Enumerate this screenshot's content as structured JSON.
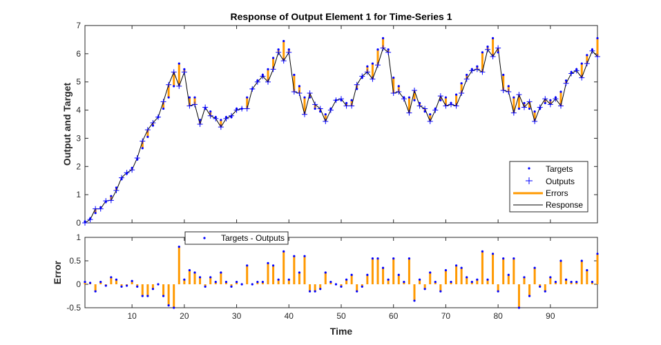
{
  "chart_data": [
    {
      "type": "line",
      "title": "Response of Output Element 1 for Time-Series 1",
      "xlabel": "",
      "ylabel": "Output and Target",
      "xlim": [
        1,
        99
      ],
      "ylim": [
        0,
        7
      ],
      "y_ticks": [
        0,
        1,
        2,
        3,
        4,
        5,
        6,
        7
      ],
      "grid": false,
      "legend_position": "bottom-right",
      "legend": [
        "Targets",
        "Outputs",
        "Errors",
        "Response"
      ],
      "colors": {
        "targets": "#0000ff",
        "outputs": "#0000ff",
        "errors": "#ff9900",
        "response": "#000000"
      },
      "x": [
        1,
        2,
        3,
        4,
        5,
        6,
        7,
        8,
        9,
        10,
        11,
        12,
        13,
        14,
        15,
        16,
        17,
        18,
        19,
        20,
        21,
        22,
        23,
        24,
        25,
        26,
        27,
        28,
        29,
        30,
        31,
        32,
        33,
        34,
        35,
        36,
        37,
        38,
        39,
        40,
        41,
        42,
        43,
        44,
        45,
        46,
        47,
        48,
        49,
        50,
        51,
        52,
        53,
        54,
        55,
        56,
        57,
        58,
        59,
        60,
        61,
        62,
        63,
        64,
        65,
        66,
        67,
        68,
        69,
        70,
        71,
        72,
        73,
        74,
        75,
        76,
        77,
        78,
        79,
        80,
        81,
        82,
        83,
        84,
        85,
        86,
        87,
        88,
        89,
        90,
        91,
        92,
        93,
        94,
        95,
        96,
        97,
        98,
        99
      ],
      "series": [
        {
          "name": "Targets",
          "values": [
            0.05,
            0.15,
            0.35,
            0.55,
            0.75,
            0.95,
            1.25,
            1.55,
            1.75,
            1.95,
            2.25,
            2.65,
            3.05,
            3.45,
            3.75,
            4.05,
            4.45,
            4.85,
            5.65,
            5.45,
            4.45,
            4.45,
            3.65,
            4.05,
            3.95,
            3.75,
            3.65,
            3.75,
            3.75,
            4.05,
            4.05,
            4.45,
            4.75,
            5.05,
            5.25,
            5.45,
            5.85,
            6.15,
            6.45,
            6.15,
            5.25,
            4.85,
            4.45,
            4.45,
            4.05,
            3.95,
            3.85,
            4.05,
            4.35,
            4.35,
            4.25,
            4.35,
            4.75,
            5.15,
            5.55,
            5.65,
            6.15,
            6.55,
            6.15,
            5.15,
            4.85,
            4.45,
            4.45,
            4.35,
            4.25,
            3.95,
            3.85,
            4.05,
            4.35,
            4.45,
            4.25,
            4.55,
            4.95,
            5.25,
            5.45,
            5.55,
            6.05,
            6.25,
            6.55,
            6.05,
            5.25,
            4.85,
            4.45,
            4.05,
            4.25,
            4.05,
            3.95,
            4.05,
            4.25,
            4.35,
            4.45,
            4.65,
            5.05,
            5.35,
            5.45,
            5.65,
            5.95,
            6.15,
            6.55
          ]
        },
        {
          "name": "Outputs",
          "values": [
            0.0,
            0.12,
            0.5,
            0.5,
            0.78,
            0.8,
            1.15,
            1.6,
            1.78,
            1.88,
            2.3,
            2.9,
            3.3,
            3.55,
            3.75,
            4.3,
            4.9,
            5.35,
            4.85,
            5.35,
            4.15,
            4.2,
            3.5,
            4.1,
            3.8,
            3.7,
            3.4,
            3.7,
            3.8,
            4.0,
            4.05,
            4.05,
            4.75,
            5.0,
            5.2,
            5.0,
            5.45,
            6.05,
            5.75,
            6.05,
            4.65,
            4.6,
            3.85,
            4.6,
            4.2,
            4.05,
            3.6,
            4.0,
            4.35,
            4.4,
            4.15,
            4.15,
            4.9,
            5.2,
            5.35,
            5.1,
            5.6,
            6.2,
            6.05,
            4.6,
            4.65,
            4.4,
            3.9,
            4.7,
            4.15,
            4.05,
            3.6,
            4.0,
            4.5,
            4.15,
            4.2,
            4.15,
            4.6,
            5.1,
            5.4,
            5.45,
            5.35,
            6.15,
            5.9,
            6.2,
            4.7,
            4.65,
            3.9,
            4.55,
            4.1,
            4.3,
            3.6,
            4.1,
            4.4,
            4.2,
            4.4,
            4.15,
            4.95,
            5.3,
            5.4,
            5.15,
            5.65,
            6.1,
            5.9
          ]
        }
      ]
    },
    {
      "type": "bar",
      "title": "",
      "xlabel": "Time",
      "ylabel": "Error",
      "xlim": [
        1,
        99
      ],
      "ylim": [
        -0.5,
        1
      ],
      "x_ticks": [
        10,
        20,
        30,
        40,
        50,
        60,
        70,
        80,
        90
      ],
      "y_ticks": [
        -0.5,
        0,
        0.5,
        1
      ],
      "grid": false,
      "legend_position": "top-left",
      "legend": [
        "Targets - Outputs"
      ],
      "colors": {
        "stems": "#ff9900",
        "markers": "#0000ff"
      },
      "series": [
        {
          "name": "Targets - Outputs",
          "values": [
            0.05,
            0.03,
            -0.15,
            0.05,
            -0.03,
            0.15,
            0.1,
            -0.05,
            -0.03,
            0.07,
            -0.05,
            -0.25,
            -0.25,
            -0.1,
            0.0,
            -0.25,
            -0.45,
            -0.5,
            0.8,
            0.1,
            0.3,
            0.25,
            0.15,
            -0.05,
            0.15,
            0.05,
            0.25,
            0.05,
            -0.05,
            0.05,
            0.0,
            0.4,
            0.0,
            0.05,
            0.05,
            0.45,
            0.4,
            0.1,
            0.7,
            0.1,
            0.6,
            0.25,
            0.6,
            -0.15,
            -0.15,
            -0.1,
            0.25,
            0.05,
            0.0,
            -0.05,
            0.1,
            0.2,
            -0.15,
            -0.05,
            0.2,
            0.55,
            0.55,
            0.35,
            0.1,
            0.55,
            0.2,
            0.05,
            0.55,
            -0.35,
            0.1,
            -0.1,
            0.25,
            0.05,
            -0.15,
            0.3,
            0.05,
            0.4,
            0.35,
            0.15,
            0.05,
            0.1,
            0.7,
            0.1,
            0.65,
            -0.15,
            0.55,
            0.2,
            0.55,
            -0.5,
            0.15,
            -0.25,
            0.35,
            -0.05,
            -0.15,
            0.15,
            0.05,
            0.5,
            0.1,
            0.05,
            0.05,
            0.5,
            0.3,
            0.05,
            0.65
          ]
        }
      ]
    }
  ]
}
